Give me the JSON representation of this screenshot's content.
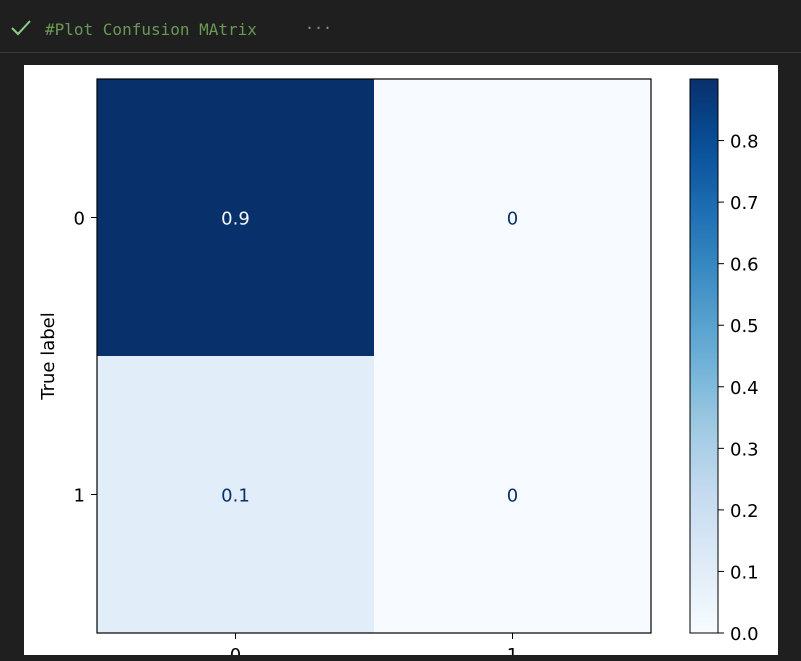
{
  "cell": {
    "status_icon": "check-icon",
    "title": "#Plot Confusion MAtrix",
    "more": "···"
  },
  "colors": {
    "title_green": "#6a9955",
    "check_green": "#89d185",
    "cmap_dark": "#08306b",
    "cmap_light": "#f7fbff"
  },
  "chart_data": {
    "type": "heatmap",
    "ylabel": "True label",
    "xlabel": "",
    "x_categories": [
      "0",
      "1"
    ],
    "y_categories": [
      "0",
      "1"
    ],
    "values": [
      [
        0.9,
        0
      ],
      [
        0.1,
        0
      ]
    ],
    "cell_labels": [
      [
        "0.9",
        "0"
      ],
      [
        "0.1",
        "0"
      ]
    ],
    "colorbar": {
      "range": [
        0,
        0.9
      ],
      "ticks": [
        0.0,
        0.1,
        0.2,
        0.3,
        0.4,
        0.5,
        0.6,
        0.7,
        0.8
      ],
      "tick_labels": [
        "0.0",
        "0.1",
        "0.2",
        "0.3",
        "0.4",
        "0.5",
        "0.6",
        "0.7",
        "0.8"
      ],
      "colormap": "Blues"
    }
  }
}
